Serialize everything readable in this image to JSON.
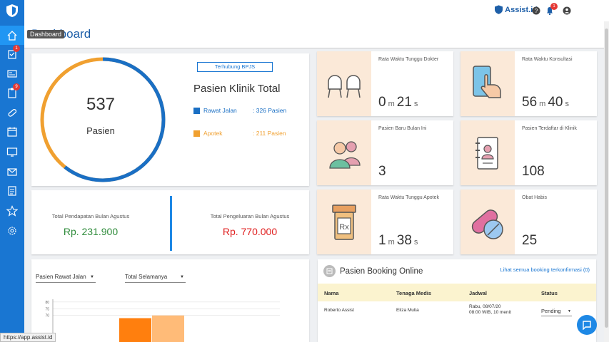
{
  "header": {
    "brand": "Assist.id",
    "notification_count": "1",
    "page_title": "Dashboard",
    "tooltip": "Dashboard"
  },
  "sidebar": {
    "badges": [
      "1",
      "9"
    ],
    "items": [
      {
        "icon": "home-icon"
      },
      {
        "icon": "checklist-icon"
      },
      {
        "icon": "id-card-icon"
      },
      {
        "icon": "clipboard-icon"
      },
      {
        "icon": "pill-icon"
      },
      {
        "icon": "calendar-icon"
      },
      {
        "icon": "monitor-icon"
      },
      {
        "icon": "mail-icon"
      },
      {
        "icon": "report-icon"
      },
      {
        "icon": "star-icon"
      },
      {
        "icon": "gear-icon"
      }
    ]
  },
  "summary": {
    "total": "537",
    "total_label": "Pasien",
    "bpjs_label": "Terhubung BPJS",
    "title": "Pasien Klinik Total",
    "rawat_jalan": {
      "label": "Rawat Jalan",
      "value": ": 326 Pasien",
      "count": 326,
      "color": "#1a6fc4"
    },
    "apotek": {
      "label": "Apotek",
      "value": ": 211 Pasien",
      "count": 211,
      "color": "#f0a030"
    }
  },
  "finance": {
    "income_label": "Total Pendapatan Bulan Agustus",
    "income_value": "Rp. 231.900",
    "expense_label": "Total Pengeluaran Bulan Agustus",
    "expense_value": "Rp. 770.000"
  },
  "stats": {
    "doctor_wait": {
      "label": "Rata Waktu Tunggu Dokter",
      "m": "0",
      "s": "21"
    },
    "consult": {
      "label": "Rata Waktu Konsultasi",
      "m": "56",
      "s": "40"
    },
    "new_patients": {
      "label": "Pasien Baru Bulan Ini",
      "value": "3"
    },
    "registered": {
      "label": "Pasien Terdaftar di Klinik",
      "value": "108"
    },
    "pharmacy_wait": {
      "label": "Rata Waktu Tunggu Apotek",
      "m": "1",
      "s": "38"
    },
    "out_of_stock": {
      "label": "Obat Habis",
      "value": "25"
    },
    "unit_m": "m",
    "unit_s": "s"
  },
  "filters": {
    "type": "Pasien Rawat Jalan",
    "range": "Total Selamanya"
  },
  "chart_data": {
    "type": "bar",
    "ytick_labels": [
      "80",
      "75",
      "70"
    ],
    "values": [
      45,
      46,
      68,
      70,
      48
    ],
    "colors": [
      "#1f77b4",
      "#aec7e8",
      "#ff7f0e",
      "#ffbb78",
      "#2ca02c"
    ],
    "ylim": [
      44,
      82
    ]
  },
  "booking": {
    "title": "Pasien Booking Online",
    "link": "Lihat semua booking terkonfirmasi (0)",
    "columns": [
      "Nama",
      "Tenaga Medis",
      "Jadwal",
      "Status"
    ],
    "rows": [
      {
        "name": "Roberto Assist",
        "staff": "Eliza Mutia",
        "date": "Rabu, 08/07/20",
        "time": "08:00 WIB, 10 menit",
        "status": "Pending"
      }
    ]
  },
  "statusbar_url": "https://app.assist.id"
}
